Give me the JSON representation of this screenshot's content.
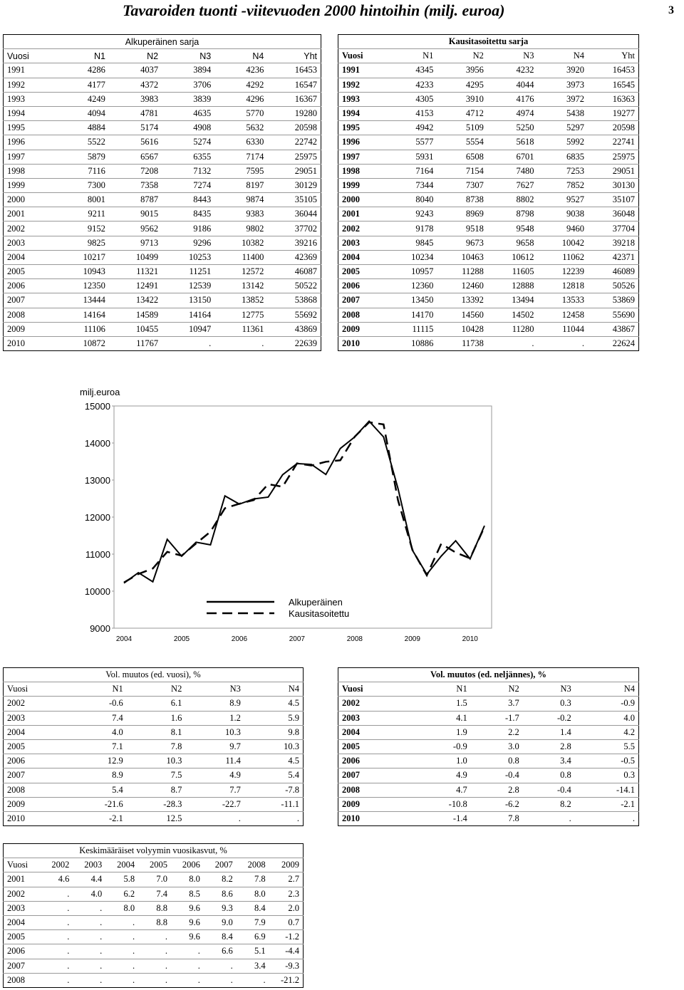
{
  "header": {
    "title": "Tavaroiden tuonti -viitevuoden 2000 hintoihin (milj. euroa)",
    "page": "3"
  },
  "tables": [
    {
      "title": "Alkuperäinen sarja",
      "columns": [
        "Vuosi",
        "N1",
        "N2",
        "N3",
        "N4",
        "Yht"
      ],
      "rows": [
        [
          "1991",
          "4286",
          "4037",
          "3894",
          "4236",
          "16453"
        ],
        [
          "1992",
          "4177",
          "4372",
          "3706",
          "4292",
          "16547"
        ],
        [
          "1993",
          "4249",
          "3983",
          "3839",
          "4296",
          "16367"
        ],
        [
          "1994",
          "4094",
          "4781",
          "4635",
          "5770",
          "19280"
        ],
        [
          "1995",
          "4884",
          "5174",
          "4908",
          "5632",
          "20598"
        ],
        [
          "1996",
          "5522",
          "5616",
          "5274",
          "6330",
          "22742"
        ],
        [
          "1997",
          "5879",
          "6567",
          "6355",
          "7174",
          "25975"
        ],
        [
          "1998",
          "7116",
          "7208",
          "7132",
          "7595",
          "29051"
        ],
        [
          "1999",
          "7300",
          "7358",
          "7274",
          "8197",
          "30129"
        ],
        [
          "2000",
          "8001",
          "8787",
          "8443",
          "9874",
          "35105"
        ],
        [
          "2001",
          "9211",
          "9015",
          "8435",
          "9383",
          "36044"
        ],
        [
          "2002",
          "9152",
          "9562",
          "9186",
          "9802",
          "37702"
        ],
        [
          "2003",
          "9825",
          "9713",
          "9296",
          "10382",
          "39216"
        ],
        [
          "2004",
          "10217",
          "10499",
          "10253",
          "11400",
          "42369"
        ],
        [
          "2005",
          "10943",
          "11321",
          "11251",
          "12572",
          "46087"
        ],
        [
          "2006",
          "12350",
          "12491",
          "12539",
          "13142",
          "50522"
        ],
        [
          "2007",
          "13444",
          "13422",
          "13150",
          "13852",
          "53868"
        ],
        [
          "2008",
          "14164",
          "14589",
          "14164",
          "12775",
          "55692"
        ],
        [
          "2009",
          "11106",
          "10455",
          "10947",
          "11361",
          "43869"
        ],
        [
          "2010",
          "10872",
          "11767",
          ".",
          ".",
          "22639"
        ]
      ]
    },
    {
      "title": "Kausitasoitettu sarja",
      "columns": [
        "Vuosi",
        "N1",
        "N2",
        "N3",
        "N4",
        "Yht"
      ],
      "rows": [
        [
          "1991",
          "4345",
          "3956",
          "4232",
          "3920",
          "16453"
        ],
        [
          "1992",
          "4233",
          "4295",
          "4044",
          "3973",
          "16545"
        ],
        [
          "1993",
          "4305",
          "3910",
          "4176",
          "3972",
          "16363"
        ],
        [
          "1994",
          "4153",
          "4712",
          "4974",
          "5438",
          "19277"
        ],
        [
          "1995",
          "4942",
          "5109",
          "5250",
          "5297",
          "20598"
        ],
        [
          "1996",
          "5577",
          "5554",
          "5618",
          "5992",
          "22741"
        ],
        [
          "1997",
          "5931",
          "6508",
          "6701",
          "6835",
          "25975"
        ],
        [
          "1998",
          "7164",
          "7154",
          "7480",
          "7253",
          "29051"
        ],
        [
          "1999",
          "7344",
          "7307",
          "7627",
          "7852",
          "30130"
        ],
        [
          "2000",
          "8040",
          "8738",
          "8802",
          "9527",
          "35107"
        ],
        [
          "2001",
          "9243",
          "8969",
          "8798",
          "9038",
          "36048"
        ],
        [
          "2002",
          "9178",
          "9518",
          "9548",
          "9460",
          "37704"
        ],
        [
          "2003",
          "9845",
          "9673",
          "9658",
          "10042",
          "39218"
        ],
        [
          "2004",
          "10234",
          "10463",
          "10612",
          "11062",
          "42371"
        ],
        [
          "2005",
          "10957",
          "11288",
          "11605",
          "12239",
          "46089"
        ],
        [
          "2006",
          "12360",
          "12460",
          "12888",
          "12818",
          "50526"
        ],
        [
          "2007",
          "13450",
          "13392",
          "13494",
          "13533",
          "53869"
        ],
        [
          "2008",
          "14170",
          "14560",
          "14502",
          "12458",
          "55690"
        ],
        [
          "2009",
          "11115",
          "10428",
          "11280",
          "11044",
          "43867"
        ],
        [
          "2010",
          "10886",
          "11738",
          ".",
          ".",
          "22624"
        ]
      ]
    },
    {
      "title": "Vol. muutos (ed. vuosi), %",
      "columns": [
        "Vuosi",
        "N1",
        "N2",
        "N3",
        "N4"
      ],
      "rows": [
        [
          "2002",
          "-0.6",
          "6.1",
          "8.9",
          "4.5"
        ],
        [
          "2003",
          "7.4",
          "1.6",
          "1.2",
          "5.9"
        ],
        [
          "2004",
          "4.0",
          "8.1",
          "10.3",
          "9.8"
        ],
        [
          "2005",
          "7.1",
          "7.8",
          "9.7",
          "10.3"
        ],
        [
          "2006",
          "12.9",
          "10.3",
          "11.4",
          "4.5"
        ],
        [
          "2007",
          "8.9",
          "7.5",
          "4.9",
          "5.4"
        ],
        [
          "2008",
          "5.4",
          "8.7",
          "7.7",
          "-7.8"
        ],
        [
          "2009",
          "-21.6",
          "-28.3",
          "-22.7",
          "-11.1"
        ],
        [
          "2010",
          "-2.1",
          "12.5",
          ".",
          "."
        ]
      ]
    },
    {
      "title": "Vol. muutos (ed. neljännes), %",
      "columns": [
        "Vuosi",
        "N1",
        "N2",
        "N3",
        "N4"
      ],
      "rows": [
        [
          "2002",
          "1.5",
          "3.7",
          "0.3",
          "-0.9"
        ],
        [
          "2003",
          "4.1",
          "-1.7",
          "-0.2",
          "4.0"
        ],
        [
          "2004",
          "1.9",
          "2.2",
          "1.4",
          "4.2"
        ],
        [
          "2005",
          "-0.9",
          "3.0",
          "2.8",
          "5.5"
        ],
        [
          "2006",
          "1.0",
          "0.8",
          "3.4",
          "-0.5"
        ],
        [
          "2007",
          "4.9",
          "-0.4",
          "0.8",
          "0.3"
        ],
        [
          "2008",
          "4.7",
          "2.8",
          "-0.4",
          "-14.1"
        ],
        [
          "2009",
          "-10.8",
          "-6.2",
          "8.2",
          "-2.1"
        ],
        [
          "2010",
          "-1.4",
          "7.8",
          ".",
          "."
        ]
      ]
    },
    {
      "title": "Keskimääräiset volyymin vuosikasvut, %",
      "columns": [
        "Vuosi",
        "2002",
        "2003",
        "2004",
        "2005",
        "2006",
        "2007",
        "2008",
        "2009"
      ],
      "rows": [
        [
          "2001",
          "4.6",
          "4.4",
          "5.8",
          "7.0",
          "8.0",
          "8.2",
          "7.8",
          "2.7"
        ],
        [
          "2002",
          ".",
          "4.0",
          "6.2",
          "7.4",
          "8.5",
          "8.6",
          "8.0",
          "2.3"
        ],
        [
          "2003",
          ".",
          ".",
          "8.0",
          "8.8",
          "9.6",
          "9.3",
          "8.4",
          "2.0"
        ],
        [
          "2004",
          ".",
          ".",
          ".",
          "8.8",
          "9.6",
          "9.0",
          "7.9",
          "0.7"
        ],
        [
          "2005",
          ".",
          ".",
          ".",
          ".",
          "9.6",
          "8.4",
          "6.9",
          "-1.2"
        ],
        [
          "2006",
          ".",
          ".",
          ".",
          ".",
          ".",
          "6.6",
          "5.1",
          "-4.4"
        ],
        [
          "2007",
          ".",
          ".",
          ".",
          ".",
          ".",
          ".",
          "3.4",
          "-9.3"
        ],
        [
          "2008",
          ".",
          ".",
          ".",
          ".",
          ".",
          ".",
          ".",
          "-21.2"
        ]
      ]
    }
  ],
  "chart_data": {
    "type": "line",
    "y_label": "milj.euroa",
    "categories": [
      "2004",
      null,
      null,
      null,
      "2005",
      null,
      null,
      null,
      "2006",
      null,
      null,
      null,
      "2007",
      null,
      null,
      null,
      "2008",
      null,
      null,
      null,
      "2009",
      null,
      null,
      null,
      "2010",
      null
    ],
    "ylim": [
      9000,
      15000
    ],
    "yticks": [
      9000,
      10000,
      11000,
      12000,
      13000,
      14000,
      15000
    ],
    "series": [
      {
        "name": "Alkuperäinen",
        "color": "#000000",
        "style": "solid",
        "values": [
          10217,
          10499,
          10253,
          11400,
          10943,
          11321,
          11251,
          12572,
          12350,
          12491,
          12539,
          13142,
          13444,
          13422,
          13150,
          13852,
          14164,
          14589,
          14164,
          12775,
          11106,
          10455,
          10947,
          11361,
          10872,
          11767
        ]
      },
      {
        "name": "Kausitasoitettu",
        "color": "#000000",
        "style": "dashed",
        "values": [
          10234,
          10463,
          10612,
          11062,
          10957,
          11288,
          11605,
          12239,
          12360,
          12460,
          12888,
          12818,
          13450,
          13392,
          13494,
          13533,
          14170,
          14560,
          14502,
          12458,
          11115,
          10428,
          11280,
          11044,
          10886,
          11738
        ]
      }
    ]
  }
}
